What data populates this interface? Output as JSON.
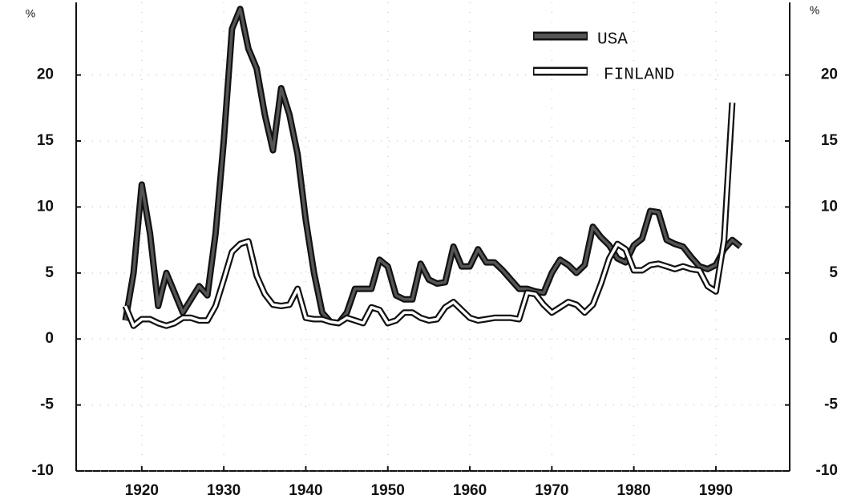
{
  "chart_data": {
    "type": "line",
    "y_label": "%",
    "y2_label": "%",
    "x": [
      1918,
      1919,
      1920,
      1921,
      1922,
      1923,
      1924,
      1925,
      1926,
      1927,
      1928,
      1929,
      1930,
      1931,
      1932,
      1933,
      1934,
      1935,
      1936,
      1937,
      1938,
      1939,
      1940,
      1941,
      1942,
      1943,
      1944,
      1945,
      1946,
      1947,
      1948,
      1949,
      1950,
      1951,
      1952,
      1953,
      1954,
      1955,
      1956,
      1957,
      1958,
      1959,
      1960,
      1961,
      1962,
      1963,
      1964,
      1965,
      1966,
      1967,
      1968,
      1969,
      1970,
      1971,
      1972,
      1973,
      1974,
      1975,
      1976,
      1977,
      1978,
      1979,
      1980,
      1981,
      1982,
      1983,
      1984,
      1985,
      1986,
      1987,
      1988,
      1989,
      1990,
      1991,
      1992,
      1993
    ],
    "series": [
      {
        "name": "USA",
        "color": "#555555",
        "values": [
          1.4,
          5,
          11.7,
          8,
          2.5,
          5,
          3.5,
          2,
          3,
          4,
          3.3,
          8,
          15,
          23.5,
          25,
          22,
          20.5,
          17,
          14.3,
          19,
          17,
          14,
          9,
          5,
          2,
          1.3,
          1.2,
          2,
          3.8,
          3.8,
          3.8,
          6,
          5.5,
          3.3,
          3,
          3,
          5.7,
          4.5,
          4.2,
          4.3,
          7,
          5.5,
          5.5,
          6.8,
          5.8,
          5.8,
          5.2,
          4.5,
          3.8,
          3.8,
          3.6,
          3.5,
          5,
          6,
          5.6,
          5,
          5.6,
          8.5,
          7.7,
          7.1,
          6.1,
          5.8,
          7.1,
          7.6,
          9.7,
          9.6,
          7.5,
          7.2,
          7,
          6.2,
          5.5,
          5.3,
          5.6,
          6.8,
          7.5,
          7
        ]
      },
      {
        "name": "FINLAND",
        "color": "#ffffff",
        "values": [
          2.5,
          1,
          1.5,
          1.5,
          1.2,
          1,
          1.2,
          1.6,
          1.6,
          1.4,
          1.4,
          2.5,
          4.5,
          6.6,
          7.2,
          7.4,
          4.8,
          3.4,
          2.6,
          2.5,
          2.6,
          3.8,
          1.6,
          1.5,
          1.5,
          1.3,
          1.2,
          1.6,
          1.4,
          1.2,
          2.4,
          2.2,
          1.2,
          1.4,
          2,
          2,
          1.6,
          1.4,
          1.5,
          2.4,
          2.8,
          2.2,
          1.6,
          1.4,
          1.5,
          1.6,
          1.6,
          1.6,
          1.5,
          3.5,
          3.4,
          2.6,
          2,
          2.4,
          2.8,
          2.6,
          2,
          2.6,
          4.2,
          6.1,
          7.2,
          6.8,
          5.2,
          5.2,
          5.6,
          5.7,
          5.5,
          5.3,
          5.5,
          5.3,
          5.2,
          4,
          3.6,
          7.5,
          17.9,
          null
        ]
      }
    ],
    "xlim": [
      1912,
      1999
    ],
    "xticks": [
      1920,
      1930,
      1940,
      1950,
      1960,
      1970,
      1980,
      1990
    ],
    "ylim": [
      -10,
      25.5
    ],
    "yticks": [
      -10,
      -5,
      0,
      5,
      10,
      15,
      20
    ],
    "y2lim": [
      -10,
      25.5
    ],
    "y2ticks": [
      -10,
      -5,
      0,
      5,
      10,
      15,
      20
    ],
    "grid": true,
    "legend": "upper right"
  }
}
